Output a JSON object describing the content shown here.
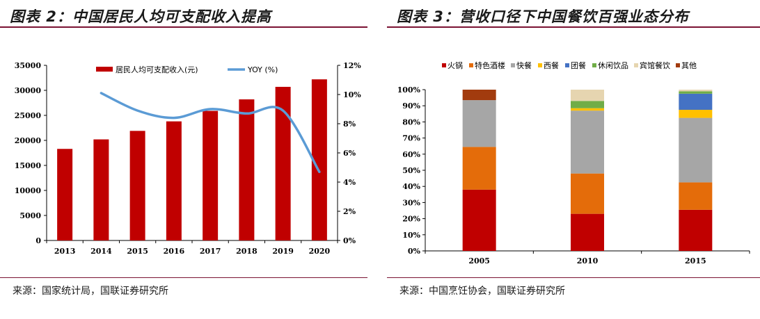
{
  "colors": {
    "accent": "#7a1232",
    "bar_red": "#c00000",
    "line_blue": "#5b9bd5"
  },
  "left": {
    "title": "图表 2：中国居民人均可支配收入提高",
    "source": "来源：国家统计局，国联证券研究所"
  },
  "right": {
    "title": "图表 3：营收口径下中国餐饮百强业态分布",
    "source": "来源：中国烹饪协会，国联证券研究所"
  },
  "chart_data": [
    {
      "type": "bar",
      "title": "",
      "categories": [
        "2013",
        "2014",
        "2015",
        "2016",
        "2017",
        "2018",
        "2019",
        "2020"
      ],
      "series": [
        {
          "name": "居民人均可支配收入(元)",
          "type": "bar",
          "axis": "left",
          "color": "#c00000",
          "values": [
            18300,
            20200,
            21900,
            23800,
            25900,
            28200,
            30700,
            32200
          ]
        },
        {
          "name": "YOY (%)",
          "type": "line",
          "axis": "right",
          "color": "#5b9bd5",
          "values": [
            null,
            10.1,
            8.9,
            8.4,
            9.0,
            8.7,
            8.9,
            4.7
          ]
        }
      ],
      "y_left": {
        "min": 0,
        "max": 35000,
        "ticks": [
          "0",
          "5000",
          "10000",
          "15000",
          "20000",
          "25000",
          "30000",
          "35000"
        ]
      },
      "y_right": {
        "min": 0,
        "max": 12,
        "ticks": [
          "0%",
          "2%",
          "4%",
          "6%",
          "8%",
          "10%",
          "12%"
        ]
      },
      "grid": false,
      "legend": "top-center"
    },
    {
      "type": "bar",
      "stacked": true,
      "title": "",
      "categories": [
        "2005",
        "2010",
        "2015"
      ],
      "series": [
        {
          "name": "火锅",
          "color": "#c00000",
          "values": [
            38,
            23,
            25.5
          ]
        },
        {
          "name": "特色酒楼",
          "color": "#e46c0a",
          "values": [
            26.5,
            25,
            17
          ]
        },
        {
          "name": "快餐",
          "color": "#a6a6a6",
          "values": [
            29,
            39,
            40
          ]
        },
        {
          "name": "西餐",
          "color": "#ffc000",
          "values": [
            0,
            1.5,
            5
          ]
        },
        {
          "name": "团餐",
          "color": "#4472c4",
          "values": [
            0,
            0,
            10
          ]
        },
        {
          "name": "休闲饮品",
          "color": "#70ad47",
          "values": [
            0,
            4.5,
            1.5
          ]
        },
        {
          "name": "宾馆餐饮",
          "color": "#e6d5b0",
          "values": [
            0,
            7,
            1
          ]
        },
        {
          "name": "其他",
          "color": "#a23b0e",
          "values": [
            6.5,
            0,
            0
          ]
        }
      ],
      "y": {
        "min": 0,
        "max": 100,
        "ticks": [
          "0%",
          "10%",
          "20%",
          "30%",
          "40%",
          "50%",
          "60%",
          "70%",
          "80%",
          "90%",
          "100%"
        ]
      },
      "grid": false,
      "legend": "top"
    }
  ]
}
